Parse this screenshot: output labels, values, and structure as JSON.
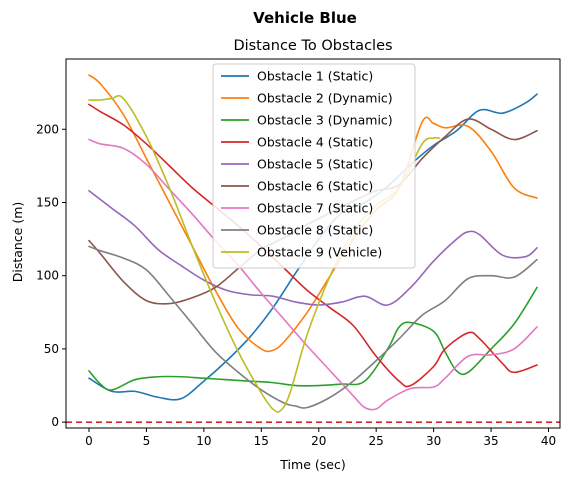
{
  "chart_data": {
    "type": "line",
    "suptitle": "Vehicle Blue",
    "title": "Distance To Obstacles",
    "xlabel": "Time (sec)",
    "ylabel": "Distance (m)",
    "xlim": [
      -2,
      41
    ],
    "ylim": [
      -4,
      248
    ],
    "xticks": [
      0,
      5,
      10,
      15,
      20,
      25,
      30,
      35,
      40
    ],
    "yticks": [
      0,
      50,
      100,
      150,
      200
    ],
    "threshold": {
      "y": 0,
      "color": "#d62728",
      "style": "dashed"
    },
    "legend_position": "upper center",
    "series": [
      {
        "name": "Obstacle 1 (Static)",
        "color": "#1f77b4",
        "x": [
          0,
          2,
          4,
          6,
          8,
          10,
          12,
          14,
          16,
          18,
          20,
          22,
          24,
          26,
          28,
          30,
          32,
          34,
          36,
          38,
          39
        ],
        "y": [
          30,
          21,
          21,
          17,
          16,
          28,
          42,
          58,
          78,
          102,
          125,
          143,
          150,
          161,
          176,
          189,
          199,
          213,
          211,
          218,
          224
        ]
      },
      {
        "name": "Obstacle 2 (Dynamic)",
        "color": "#ff7f0e",
        "x": [
          0,
          1,
          3,
          5,
          7,
          9,
          11,
          13,
          15,
          16,
          17,
          19,
          21,
          23,
          25,
          27,
          29,
          30,
          31,
          33,
          35,
          37,
          39
        ],
        "y": [
          237,
          231,
          210,
          180,
          150,
          120,
          90,
          64,
          50,
          49,
          55,
          75,
          100,
          125,
          145,
          160,
          205,
          204,
          201,
          202,
          185,
          160,
          153
        ]
      },
      {
        "name": "Obstacle 3 (Dynamic)",
        "color": "#2ca02c",
        "x": [
          0,
          1,
          2,
          4,
          6,
          8,
          10,
          12,
          14,
          16,
          18,
          20,
          22,
          24,
          26,
          27,
          28,
          30,
          31,
          32,
          33,
          35,
          37,
          39
        ],
        "y": [
          35,
          26,
          22,
          29,
          31,
          31,
          30,
          29,
          28,
          27,
          25,
          25,
          26,
          28,
          50,
          65,
          68,
          62,
          48,
          35,
          34,
          50,
          67,
          92
        ]
      },
      {
        "name": "Obstacle 4 (Static)",
        "color": "#d62728",
        "x": [
          0,
          1,
          3,
          5,
          7,
          9,
          11,
          13,
          15,
          17,
          19,
          21,
          23,
          25,
          27,
          28,
          30,
          31,
          33,
          34,
          36,
          37,
          39
        ],
        "y": [
          217,
          212,
          203,
          190,
          175,
          160,
          147,
          134,
          120,
          105,
          90,
          78,
          66,
          45,
          28,
          25,
          38,
          50,
          61,
          57,
          40,
          34,
          39
        ]
      },
      {
        "name": "Obstacle 5 (Static)",
        "color": "#9467bd",
        "x": [
          0,
          2,
          4,
          6,
          8,
          10,
          12,
          14,
          16,
          18,
          20,
          22,
          24,
          26,
          28,
          30,
          32,
          33,
          34,
          36,
          38,
          39
        ],
        "y": [
          158,
          146,
          134,
          118,
          107,
          97,
          90,
          87,
          86,
          82,
          80,
          82,
          86,
          80,
          92,
          110,
          125,
          130,
          128,
          114,
          113,
          119
        ]
      },
      {
        "name": "Obstacle 6 (Static)",
        "color": "#8c564b",
        "x": [
          0,
          1,
          3,
          5,
          7,
          9,
          11,
          13,
          15,
          17,
          19,
          21,
          23,
          25,
          27,
          29,
          31,
          33,
          35,
          37,
          39
        ],
        "y": [
          124,
          115,
          96,
          83,
          81,
          85,
          92,
          105,
          118,
          126,
          135,
          143,
          151,
          158,
          162,
          180,
          195,
          207,
          200,
          193,
          199
        ]
      },
      {
        "name": "Obstacle 7 (Static)",
        "color": "#e377c2",
        "x": [
          0,
          1,
          3,
          5,
          7,
          9,
          11,
          13,
          15,
          17,
          19,
          21,
          23,
          24,
          25,
          26,
          28,
          30,
          31,
          33,
          35,
          37,
          39
        ],
        "y": [
          193,
          190,
          187,
          176,
          159,
          142,
          124,
          107,
          88,
          70,
          52,
          35,
          18,
          10,
          9,
          15,
          23,
          24,
          30,
          45,
          46,
          50,
          65
        ]
      },
      {
        "name": "Obstacle 8 (Static)",
        "color": "#7f7f7f",
        "x": [
          0,
          1,
          3,
          5,
          7,
          9,
          11,
          13,
          15,
          17,
          18,
          19,
          21,
          23,
          25,
          27,
          29,
          31,
          33,
          35,
          37,
          39
        ],
        "y": [
          120,
          117,
          112,
          104,
          86,
          67,
          48,
          34,
          22,
          13,
          11,
          10,
          17,
          28,
          42,
          57,
          73,
          83,
          98,
          100,
          99,
          111
        ]
      },
      {
        "name": "Obstacle 9 (Vehicle)",
        "color": "#bcbd22",
        "x": [
          0,
          1,
          2,
          3,
          5,
          7,
          9,
          11,
          13,
          15,
          16,
          16.7,
          17.5,
          19,
          21,
          23,
          25,
          27,
          29,
          30,
          30.5
        ],
        "y": [
          220,
          220,
          221,
          221,
          195,
          160,
          120,
          82,
          48,
          20,
          9,
          8,
          20,
          60,
          100,
          130,
          148,
          160,
          190,
          194,
          194
        ]
      }
    ]
  }
}
